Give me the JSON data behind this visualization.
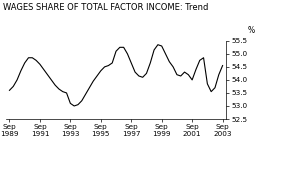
{
  "title": "WAGES SHARE OF TOTAL FACTOR INCOME: Trend",
  "ylabel": "%",
  "ylim": [
    52.5,
    55.5
  ],
  "yticks": [
    52.5,
    53.0,
    53.5,
    54.0,
    54.5,
    55.0,
    55.5
  ],
  "x_labels": [
    "Sep\n1989",
    "Sep\n1991",
    "Sep\n1993",
    "Sep\n1995",
    "Sep\n1997",
    "Sep\n1999",
    "Sep\n2001",
    "Sep\n2003"
  ],
  "x_positions": [
    0,
    8,
    16,
    24,
    32,
    40,
    48,
    56
  ],
  "line_color": "#000000",
  "bg_color": "#ffffff",
  "data_x": [
    0,
    1,
    2,
    3,
    4,
    5,
    6,
    7,
    8,
    9,
    10,
    11,
    12,
    13,
    14,
    15,
    16,
    17,
    18,
    19,
    20,
    21,
    22,
    23,
    24,
    25,
    26,
    27,
    28,
    29,
    30,
    31,
    32,
    33,
    34,
    35,
    36,
    37,
    38,
    39,
    40,
    41,
    42,
    43,
    44,
    45,
    46,
    47,
    48,
    49,
    50,
    51,
    52,
    53,
    54,
    55,
    56
  ],
  "data_y": [
    53.6,
    53.75,
    54.0,
    54.35,
    54.65,
    54.85,
    54.85,
    54.75,
    54.6,
    54.4,
    54.2,
    54.0,
    53.8,
    53.65,
    53.55,
    53.5,
    53.1,
    53.0,
    53.05,
    53.2,
    53.45,
    53.7,
    53.95,
    54.15,
    54.35,
    54.5,
    54.55,
    54.65,
    55.1,
    55.25,
    55.25,
    55.0,
    54.65,
    54.3,
    54.15,
    54.1,
    54.25,
    54.65,
    55.15,
    55.35,
    55.3,
    55.0,
    54.7,
    54.5,
    54.2,
    54.15,
    54.3,
    54.2,
    54.0,
    54.4,
    54.75,
    54.85,
    53.85,
    53.55,
    53.7,
    54.2,
    54.55
  ],
  "title_fontsize": 6.0,
  "tick_fontsize": 5.2,
  "ylabel_fontsize": 5.5,
  "linewidth": 0.8
}
